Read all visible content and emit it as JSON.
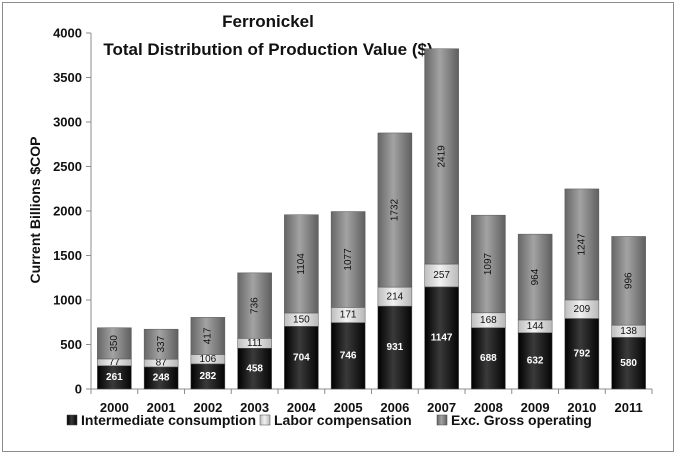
{
  "chart_data": {
    "type": "bar",
    "stacked": true,
    "title": "Ferronickel",
    "subtitle": "Total Distribution of Production Value ($)",
    "xlabel": "",
    "ylabel": "Current Billions  $COP",
    "ylim": [
      0,
      4000
    ],
    "yticks": [
      0,
      500,
      1000,
      1500,
      2000,
      2500,
      3000,
      3500,
      4000
    ],
    "categories": [
      "2000",
      "2001",
      "2002",
      "2003",
      "2004",
      "2005",
      "2006",
      "2007",
      "2008",
      "2009",
      "2010",
      "2011"
    ],
    "series": [
      {
        "name": "Intermediate consumption",
        "color": "#1a1a1a",
        "values": [
          261,
          248,
          282,
          458,
          704,
          746,
          931,
          1147,
          688,
          632,
          792,
          580
        ]
      },
      {
        "name": "Labor compensation",
        "color": "#d4d4d4",
        "values": [
          77,
          87,
          106,
          111,
          150,
          171,
          214,
          257,
          168,
          144,
          209,
          138
        ]
      },
      {
        "name": "Exc. Gross operating",
        "color": "#7d7d7d",
        "values": [
          350,
          337,
          417,
          736,
          1104,
          1077,
          1732,
          2419,
          1097,
          964,
          1247,
          996
        ]
      }
    ],
    "legend_position": "bottom",
    "grid": false
  }
}
